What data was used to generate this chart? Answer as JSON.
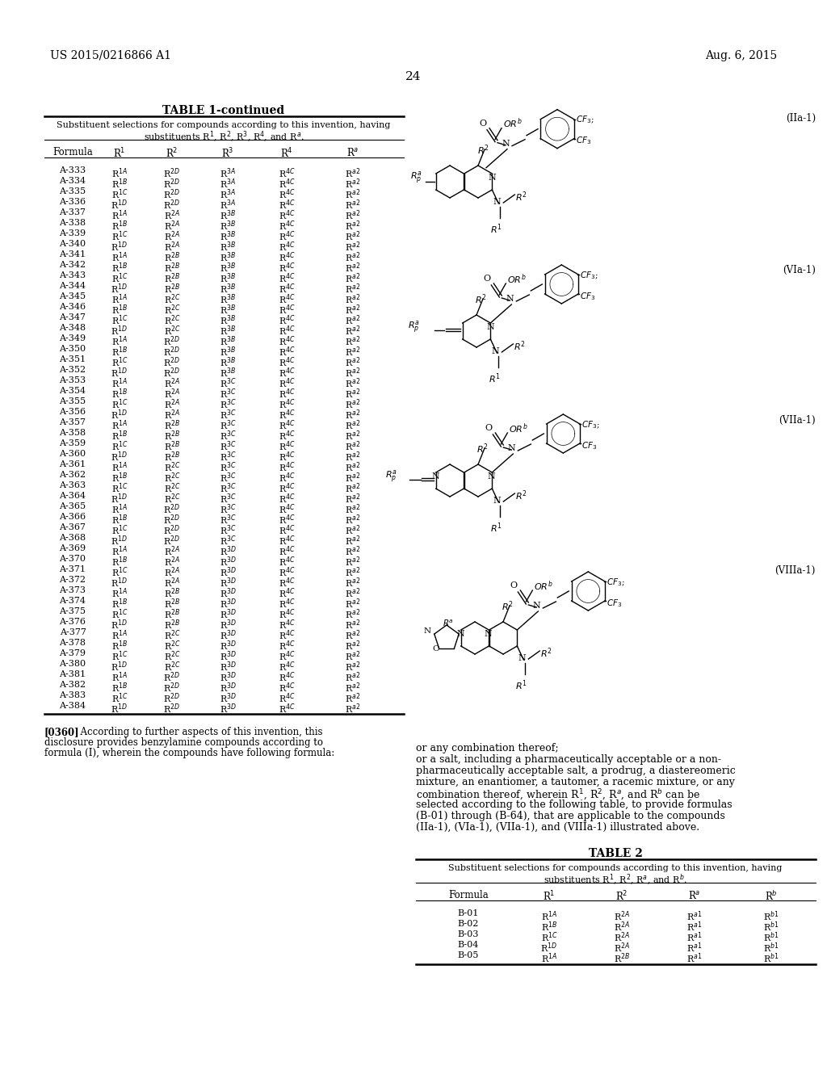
{
  "page_header_left": "US 2015/0216866 A1",
  "page_header_right": "Aug. 6, 2015",
  "page_number": "24",
  "table1_title": "TABLE 1-continued",
  "table1_col_headers": [
    "Formula",
    "R$^1$",
    "R$^2$",
    "R$^3$",
    "R$^4$",
    "R$^a$"
  ],
  "table1_subtitle_line1": "Substituent selections for compounds according to this invention, having",
  "table1_subtitle_line2": "substituents R$^1$, R$^2$, R$^3$, R$^4$, and R$^a$.",
  "table1_rows": [
    [
      "A-333",
      "R$^{1A}$",
      "R$^{2D}$",
      "R$^{3A}$",
      "R$^{4C}$",
      "R$^{a2}$"
    ],
    [
      "A-334",
      "R$^{1B}$",
      "R$^{2D}$",
      "R$^{3A}$",
      "R$^{4C}$",
      "R$^{a2}$"
    ],
    [
      "A-335",
      "R$^{1C}$",
      "R$^{2D}$",
      "R$^{3A}$",
      "R$^{4C}$",
      "R$^{a2}$"
    ],
    [
      "A-336",
      "R$^{1D}$",
      "R$^{2D}$",
      "R$^{3A}$",
      "R$^{4C}$",
      "R$^{a2}$"
    ],
    [
      "A-337",
      "R$^{1A}$",
      "R$^{2A}$",
      "R$^{3B}$",
      "R$^{4C}$",
      "R$^{a2}$"
    ],
    [
      "A-338",
      "R$^{1B}$",
      "R$^{2A}$",
      "R$^{3B}$",
      "R$^{4C}$",
      "R$^{a2}$"
    ],
    [
      "A-339",
      "R$^{1C}$",
      "R$^{2A}$",
      "R$^{3B}$",
      "R$^{4C}$",
      "R$^{a2}$"
    ],
    [
      "A-340",
      "R$^{1D}$",
      "R$^{2A}$",
      "R$^{3B}$",
      "R$^{4C}$",
      "R$^{a2}$"
    ],
    [
      "A-341",
      "R$^{1A}$",
      "R$^{2B}$",
      "R$^{3B}$",
      "R$^{4C}$",
      "R$^{a2}$"
    ],
    [
      "A-342",
      "R$^{1B}$",
      "R$^{2B}$",
      "R$^{3B}$",
      "R$^{4C}$",
      "R$^{a2}$"
    ],
    [
      "A-343",
      "R$^{1C}$",
      "R$^{2B}$",
      "R$^{3B}$",
      "R$^{4C}$",
      "R$^{a2}$"
    ],
    [
      "A-344",
      "R$^{1D}$",
      "R$^{2B}$",
      "R$^{3B}$",
      "R$^{4C}$",
      "R$^{a2}$"
    ],
    [
      "A-345",
      "R$^{1A}$",
      "R$^{2C}$",
      "R$^{3B}$",
      "R$^{4C}$",
      "R$^{a2}$"
    ],
    [
      "A-346",
      "R$^{1B}$",
      "R$^{2C}$",
      "R$^{3B}$",
      "R$^{4C}$",
      "R$^{a2}$"
    ],
    [
      "A-347",
      "R$^{1C}$",
      "R$^{2C}$",
      "R$^{3B}$",
      "R$^{4C}$",
      "R$^{a2}$"
    ],
    [
      "A-348",
      "R$^{1D}$",
      "R$^{2C}$",
      "R$^{3B}$",
      "R$^{4C}$",
      "R$^{a2}$"
    ],
    [
      "A-349",
      "R$^{1A}$",
      "R$^{2D}$",
      "R$^{3B}$",
      "R$^{4C}$",
      "R$^{a2}$"
    ],
    [
      "A-350",
      "R$^{1B}$",
      "R$^{2D}$",
      "R$^{3B}$",
      "R$^{4C}$",
      "R$^{a2}$"
    ],
    [
      "A-351",
      "R$^{1C}$",
      "R$^{2D}$",
      "R$^{3B}$",
      "R$^{4C}$",
      "R$^{a2}$"
    ],
    [
      "A-352",
      "R$^{1D}$",
      "R$^{2D}$",
      "R$^{3B}$",
      "R$^{4C}$",
      "R$^{a2}$"
    ],
    [
      "A-353",
      "R$^{1A}$",
      "R$^{2A}$",
      "R$^{3C}$",
      "R$^{4C}$",
      "R$^{a2}$"
    ],
    [
      "A-354",
      "R$^{1B}$",
      "R$^{2A}$",
      "R$^{3C}$",
      "R$^{4C}$",
      "R$^{a2}$"
    ],
    [
      "A-355",
      "R$^{1C}$",
      "R$^{2A}$",
      "R$^{3C}$",
      "R$^{4C}$",
      "R$^{a2}$"
    ],
    [
      "A-356",
      "R$^{1D}$",
      "R$^{2A}$",
      "R$^{3C}$",
      "R$^{4C}$",
      "R$^{a2}$"
    ],
    [
      "A-357",
      "R$^{1A}$",
      "R$^{2B}$",
      "R$^{3C}$",
      "R$^{4C}$",
      "R$^{a2}$"
    ],
    [
      "A-358",
      "R$^{1B}$",
      "R$^{2B}$",
      "R$^{3C}$",
      "R$^{4C}$",
      "R$^{a2}$"
    ],
    [
      "A-359",
      "R$^{1C}$",
      "R$^{2B}$",
      "R$^{3C}$",
      "R$^{4C}$",
      "R$^{a2}$"
    ],
    [
      "A-360",
      "R$^{1D}$",
      "R$^{2B}$",
      "R$^{3C}$",
      "R$^{4C}$",
      "R$^{a2}$"
    ],
    [
      "A-361",
      "R$^{1A}$",
      "R$^{2C}$",
      "R$^{3C}$",
      "R$^{4C}$",
      "R$^{a2}$"
    ],
    [
      "A-362",
      "R$^{1B}$",
      "R$^{2C}$",
      "R$^{3C}$",
      "R$^{4C}$",
      "R$^{a2}$"
    ],
    [
      "A-363",
      "R$^{1C}$",
      "R$^{2C}$",
      "R$^{3C}$",
      "R$^{4C}$",
      "R$^{a2}$"
    ],
    [
      "A-364",
      "R$^{1D}$",
      "R$^{2C}$",
      "R$^{3C}$",
      "R$^{4C}$",
      "R$^{a2}$"
    ],
    [
      "A-365",
      "R$^{1A}$",
      "R$^{2D}$",
      "R$^{3C}$",
      "R$^{4C}$",
      "R$^{a2}$"
    ],
    [
      "A-366",
      "R$^{1B}$",
      "R$^{2D}$",
      "R$^{3C}$",
      "R$^{4C}$",
      "R$^{a2}$"
    ],
    [
      "A-367",
      "R$^{1C}$",
      "R$^{2D}$",
      "R$^{3C}$",
      "R$^{4C}$",
      "R$^{a2}$"
    ],
    [
      "A-368",
      "R$^{1D}$",
      "R$^{2D}$",
      "R$^{3C}$",
      "R$^{4C}$",
      "R$^{a2}$"
    ],
    [
      "A-369",
      "R$^{1A}$",
      "R$^{2A}$",
      "R$^{3D}$",
      "R$^{4C}$",
      "R$^{a2}$"
    ],
    [
      "A-370",
      "R$^{1B}$",
      "R$^{2A}$",
      "R$^{3D}$",
      "R$^{4C}$",
      "R$^{a2}$"
    ],
    [
      "A-371",
      "R$^{1C}$",
      "R$^{2A}$",
      "R$^{3D}$",
      "R$^{4C}$",
      "R$^{a2}$"
    ],
    [
      "A-372",
      "R$^{1D}$",
      "R$^{2A}$",
      "R$^{3D}$",
      "R$^{4C}$",
      "R$^{a2}$"
    ],
    [
      "A-373",
      "R$^{1A}$",
      "R$^{2B}$",
      "R$^{3D}$",
      "R$^{4C}$",
      "R$^{a2}$"
    ],
    [
      "A-374",
      "R$^{1B}$",
      "R$^{2B}$",
      "R$^{3D}$",
      "R$^{4C}$",
      "R$^{a2}$"
    ],
    [
      "A-375",
      "R$^{1C}$",
      "R$^{2B}$",
      "R$^{3D}$",
      "R$^{4C}$",
      "R$^{a2}$"
    ],
    [
      "A-376",
      "R$^{1D}$",
      "R$^{2B}$",
      "R$^{3D}$",
      "R$^{4C}$",
      "R$^{a2}$"
    ],
    [
      "A-377",
      "R$^{1A}$",
      "R$^{2C}$",
      "R$^{3D}$",
      "R$^{4C}$",
      "R$^{a2}$"
    ],
    [
      "A-378",
      "R$^{1B}$",
      "R$^{2C}$",
      "R$^{3D}$",
      "R$^{4C}$",
      "R$^{a2}$"
    ],
    [
      "A-379",
      "R$^{1C}$",
      "R$^{2C}$",
      "R$^{3D}$",
      "R$^{4C}$",
      "R$^{a2}$"
    ],
    [
      "A-380",
      "R$^{1D}$",
      "R$^{2C}$",
      "R$^{3D}$",
      "R$^{4C}$",
      "R$^{a2}$"
    ],
    [
      "A-381",
      "R$^{1A}$",
      "R$^{2D}$",
      "R$^{3D}$",
      "R$^{4C}$",
      "R$^{a2}$"
    ],
    [
      "A-382",
      "R$^{1B}$",
      "R$^{2D}$",
      "R$^{3D}$",
      "R$^{4C}$",
      "R$^{a2}$"
    ],
    [
      "A-383",
      "R$^{1C}$",
      "R$^{2D}$",
      "R$^{3D}$",
      "R$^{4C}$",
      "R$^{a2}$"
    ],
    [
      "A-384",
      "R$^{1D}$",
      "R$^{2D}$",
      "R$^{3D}$",
      "R$^{4C}$",
      "R$^{a2}$"
    ]
  ],
  "para_0360_bold": "[0360]",
  "para_0360_rest": "  According to further aspects of this invention, this",
  "para_0360_line2": "disclosure provides benzylamine compounds according to",
  "para_0360_line3": "formula (I), wherein the compounds have following formula:",
  "formula_labels": [
    "(IIa-1)",
    "(VIa-1)",
    "(VIIa-1)",
    "(VIIIa-1)"
  ],
  "body_text_lines": [
    "or any combination thereof;",
    "or a salt, including a pharmaceutically acceptable or a non-",
    "pharmaceutically acceptable salt, a prodrug, a diastereomeric",
    "mixture, an enantiomer, a tautomer, a racemic mixture, or any",
    "combination thereof, wherein R$^1$, R$^2$, R$^a$, and R$^b$ can be",
    "selected according to the following table, to provide formulas",
    "(B-01) through (B-64), that are applicable to the compounds",
    "(IIa-1), (VIa-1), (VIIa-1), and (VIIIa-1) illustrated above."
  ],
  "table2_title": "TABLE 2",
  "table2_subtitle_line1": "Substituent selections for compounds according to this invention, having",
  "table2_subtitle_line2": "substituents R$^1$, R$^2$, R$^a$, and R$^b$.",
  "table2_col_headers": [
    "Formula",
    "R$^1$",
    "R$^2$",
    "R$^a$",
    "R$^b$"
  ],
  "table2_rows": [
    [
      "B-01",
      "R$^{1A}$",
      "R$^{2A}$",
      "R$^{a1}$",
      "R$^{b1}$"
    ],
    [
      "B-02",
      "R$^{1B}$",
      "R$^{2A}$",
      "R$^{a1}$",
      "R$^{b1}$"
    ],
    [
      "B-03",
      "R$^{1C}$",
      "R$^{2A}$",
      "R$^{a1}$",
      "R$^{b1}$"
    ],
    [
      "B-04",
      "R$^{1D}$",
      "R$^{2A}$",
      "R$^{a1}$",
      "R$^{b1}$"
    ],
    [
      "B-05",
      "R$^{1A}$",
      "R$^{2B}$",
      "R$^{a1}$",
      "R$^{b1}$"
    ]
  ]
}
